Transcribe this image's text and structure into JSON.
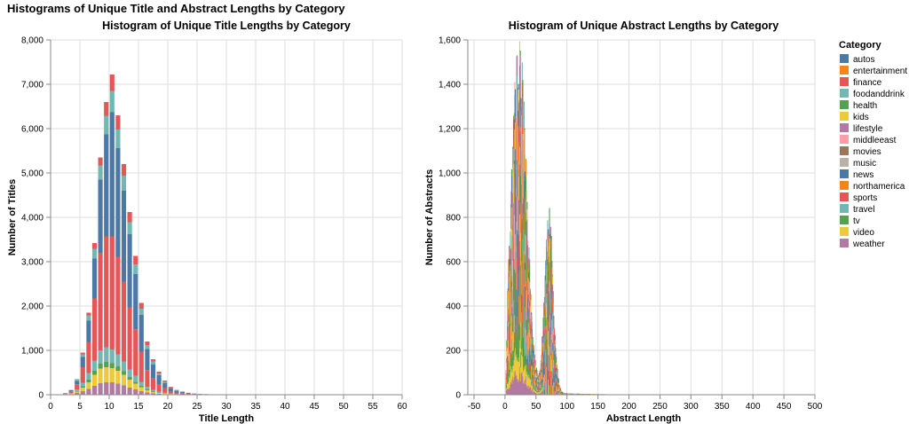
{
  "title": "Histograms of Unique Title and Abstract Lengths by Category",
  "legend": {
    "title": "Category",
    "items": [
      {
        "label": "autos",
        "color": "#4c78a8"
      },
      {
        "label": "entertainment",
        "color": "#f58518"
      },
      {
        "label": "finance",
        "color": "#e45756"
      },
      {
        "label": "foodanddrink",
        "color": "#72b7b2"
      },
      {
        "label": "health",
        "color": "#54a24b"
      },
      {
        "label": "kids",
        "color": "#eeca3b"
      },
      {
        "label": "lifestyle",
        "color": "#b279a2"
      },
      {
        "label": "middleeast",
        "color": "#ff9da6"
      },
      {
        "label": "movies",
        "color": "#9d755d"
      },
      {
        "label": "music",
        "color": "#bab0ac"
      },
      {
        "label": "news",
        "color": "#4c78a8"
      },
      {
        "label": "northamerica",
        "color": "#f58518"
      },
      {
        "label": "sports",
        "color": "#e45756"
      },
      {
        "label": "travel",
        "color": "#72b7b2"
      },
      {
        "label": "tv",
        "color": "#54a24b"
      },
      {
        "label": "video",
        "color": "#eeca3b"
      },
      {
        "label": "weather",
        "color": "#b279a2"
      }
    ]
  },
  "chart_data": [
    {
      "type": "bar",
      "stacked": true,
      "title": "Histogram of Unique Title Lengths by Category",
      "xlabel": "Title Length",
      "ylabel": "Number of Titles",
      "xlim": [
        0,
        60
      ],
      "ylim": [
        0,
        8000
      ],
      "x_ticks": [
        0,
        5,
        10,
        15,
        20,
        25,
        30,
        35,
        40,
        45,
        50,
        55,
        60
      ],
      "y_ticks": [
        0,
        1000,
        2000,
        3000,
        4000,
        5000,
        6000,
        7000,
        8000
      ],
      "y_tick_labels": [
        "0",
        "1,000",
        "2,000",
        "3,000",
        "4,000",
        "5,000",
        "6,000",
        "7,000",
        "8,000"
      ],
      "bin_width": 1,
      "x": [
        1,
        2,
        3,
        4,
        5,
        6,
        7,
        8,
        9,
        10,
        11,
        12,
        13,
        14,
        15,
        16,
        17,
        18,
        19,
        20,
        21,
        22,
        23,
        24,
        25,
        26,
        27,
        28,
        29,
        30
      ],
      "totals": [
        10,
        40,
        110,
        350,
        950,
        1850,
        3420,
        5350,
        6600,
        7220,
        6300,
        5200,
        4120,
        3130,
        2070,
        1200,
        800,
        520,
        320,
        180,
        110,
        75,
        45,
        30,
        20,
        15,
        10,
        8,
        5,
        3
      ],
      "series": [
        {
          "name": "lifestyle",
          "values": [
            2,
            6,
            15,
            40,
            80,
            130,
            200,
            260,
            280,
            280,
            250,
            210,
            160,
            120,
            80,
            50,
            30,
            20,
            12,
            7,
            4,
            3,
            2,
            1,
            1,
            1,
            0,
            0,
            0,
            0
          ]
        },
        {
          "name": "video",
          "values": [
            1,
            3,
            10,
            30,
            80,
            150,
            250,
            330,
            340,
            320,
            290,
            240,
            180,
            130,
            90,
            50,
            30,
            20,
            12,
            7,
            4,
            3,
            2,
            1,
            1,
            0,
            0,
            0,
            0,
            0
          ]
        },
        {
          "name": "health",
          "values": [
            1,
            2,
            5,
            15,
            30,
            60,
            90,
            110,
            120,
            110,
            100,
            80,
            60,
            45,
            30,
            20,
            12,
            8,
            5,
            3,
            2,
            1,
            1,
            1,
            0,
            0,
            0,
            0,
            0,
            0
          ]
        },
        {
          "name": "travel",
          "values": [
            1,
            4,
            10,
            30,
            80,
            150,
            230,
            300,
            330,
            310,
            270,
            220,
            170,
            130,
            90,
            55,
            35,
            22,
            14,
            8,
            5,
            3,
            2,
            1,
            1,
            1,
            1,
            0,
            0,
            0
          ]
        },
        {
          "name": "sports",
          "values": [
            2,
            10,
            35,
            120,
            350,
            700,
            1400,
            2200,
            2500,
            2550,
            2200,
            1800,
            1400,
            1050,
            680,
            380,
            260,
            170,
            100,
            55,
            35,
            24,
            14,
            10,
            6,
            5,
            3,
            3,
            2,
            1
          ]
        },
        {
          "name": "news",
          "values": [
            2,
            10,
            25,
            80,
            230,
            480,
            900,
            1650,
            2300,
            2800,
            2450,
            2050,
            1650,
            1250,
            830,
            480,
            320,
            200,
            125,
            70,
            43,
            30,
            18,
            12,
            8,
            6,
            4,
            3,
            2,
            1
          ]
        },
        {
          "name": "foodanddrink",
          "values": [
            1,
            3,
            7,
            25,
            60,
            120,
            220,
            320,
            420,
            480,
            420,
            340,
            270,
            210,
            140,
            85,
            60,
            40,
            25,
            15,
            9,
            6,
            3,
            2,
            2,
            1,
            1,
            1,
            1,
            1
          ]
        },
        {
          "name": "finance",
          "values": [
            0,
            2,
            3,
            10,
            40,
            60,
            130,
            180,
            310,
            370,
            320,
            260,
            230,
            195,
            130,
            80,
            53,
            40,
            27,
            15,
            8,
            5,
            3,
            2,
            1,
            1,
            1,
            1,
            0,
            0
          ]
        }
      ]
    },
    {
      "type": "bar",
      "stacked": true,
      "title": "Histogram of Unique Abstract Lengths by Category",
      "xlabel": "Abstract Length",
      "ylabel": "Number of Abstracts",
      "xlim": [
        -60,
        500
      ],
      "ylim": [
        0,
        1600
      ],
      "x_ticks": [
        -50,
        0,
        50,
        100,
        150,
        200,
        250,
        300,
        350,
        400,
        450,
        500
      ],
      "y_ticks": [
        0,
        200,
        400,
        600,
        800,
        1000,
        1200,
        1400,
        1600
      ],
      "y_tick_labels": [
        "0",
        "200",
        "400",
        "600",
        "800",
        "1,000",
        "1,200",
        "1,400",
        "1,600"
      ],
      "bin_width": 1,
      "peaks": [
        {
          "center": 22,
          "height": 1500
        },
        {
          "center": 70,
          "height": 770
        }
      ],
      "range": [
        0,
        500
      ]
    }
  ]
}
